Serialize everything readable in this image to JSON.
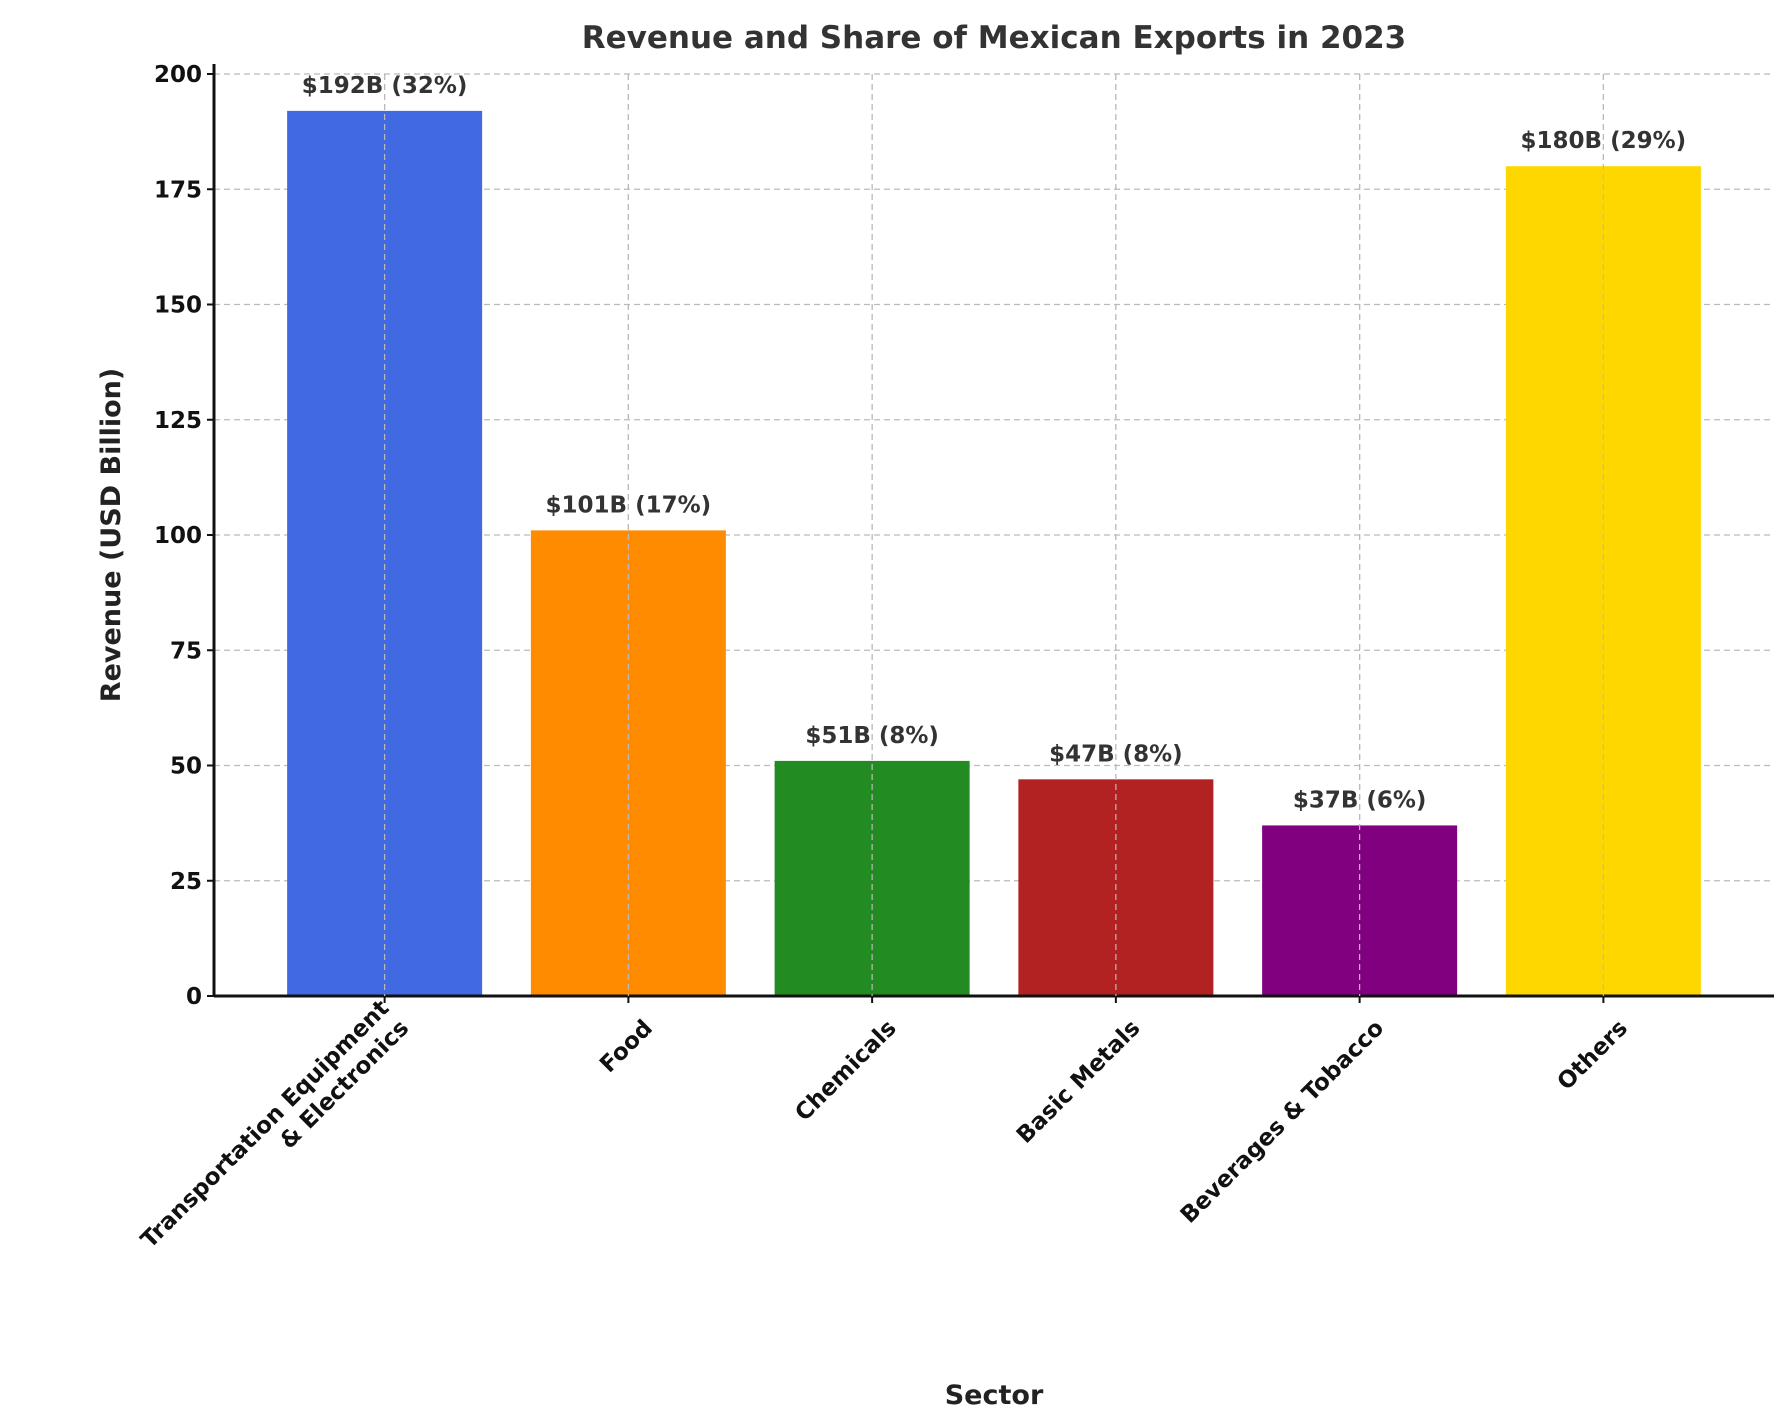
{
  "chart_data": {
    "type": "bar",
    "title": "Revenue and Share of Mexican Exports in 2023",
    "xlabel": "Sector",
    "ylabel": "Revenue (USD Billion)",
    "categories": [
      "Transportation Equipment\n& Electronics",
      "Food",
      "Chemicals",
      "Basic Metals",
      "Beverages & Tobacco",
      "Others"
    ],
    "values": [
      192,
      101,
      51,
      47,
      37,
      180
    ],
    "data_labels": [
      "$192B (32%)",
      "$101B (17%)",
      "$51B (8%)",
      "$47B (8%)",
      "$37B (6%)",
      "$180B (29%)"
    ],
    "colors": [
      "#4169e1",
      "#ff8c00",
      "#228b22",
      "#b22222",
      "#800080",
      "#ffd700"
    ],
    "ylim": [
      0,
      200
    ],
    "yticks": [
      0,
      25,
      50,
      75,
      100,
      125,
      150,
      175,
      200
    ],
    "grid": true,
    "legend": "none"
  }
}
